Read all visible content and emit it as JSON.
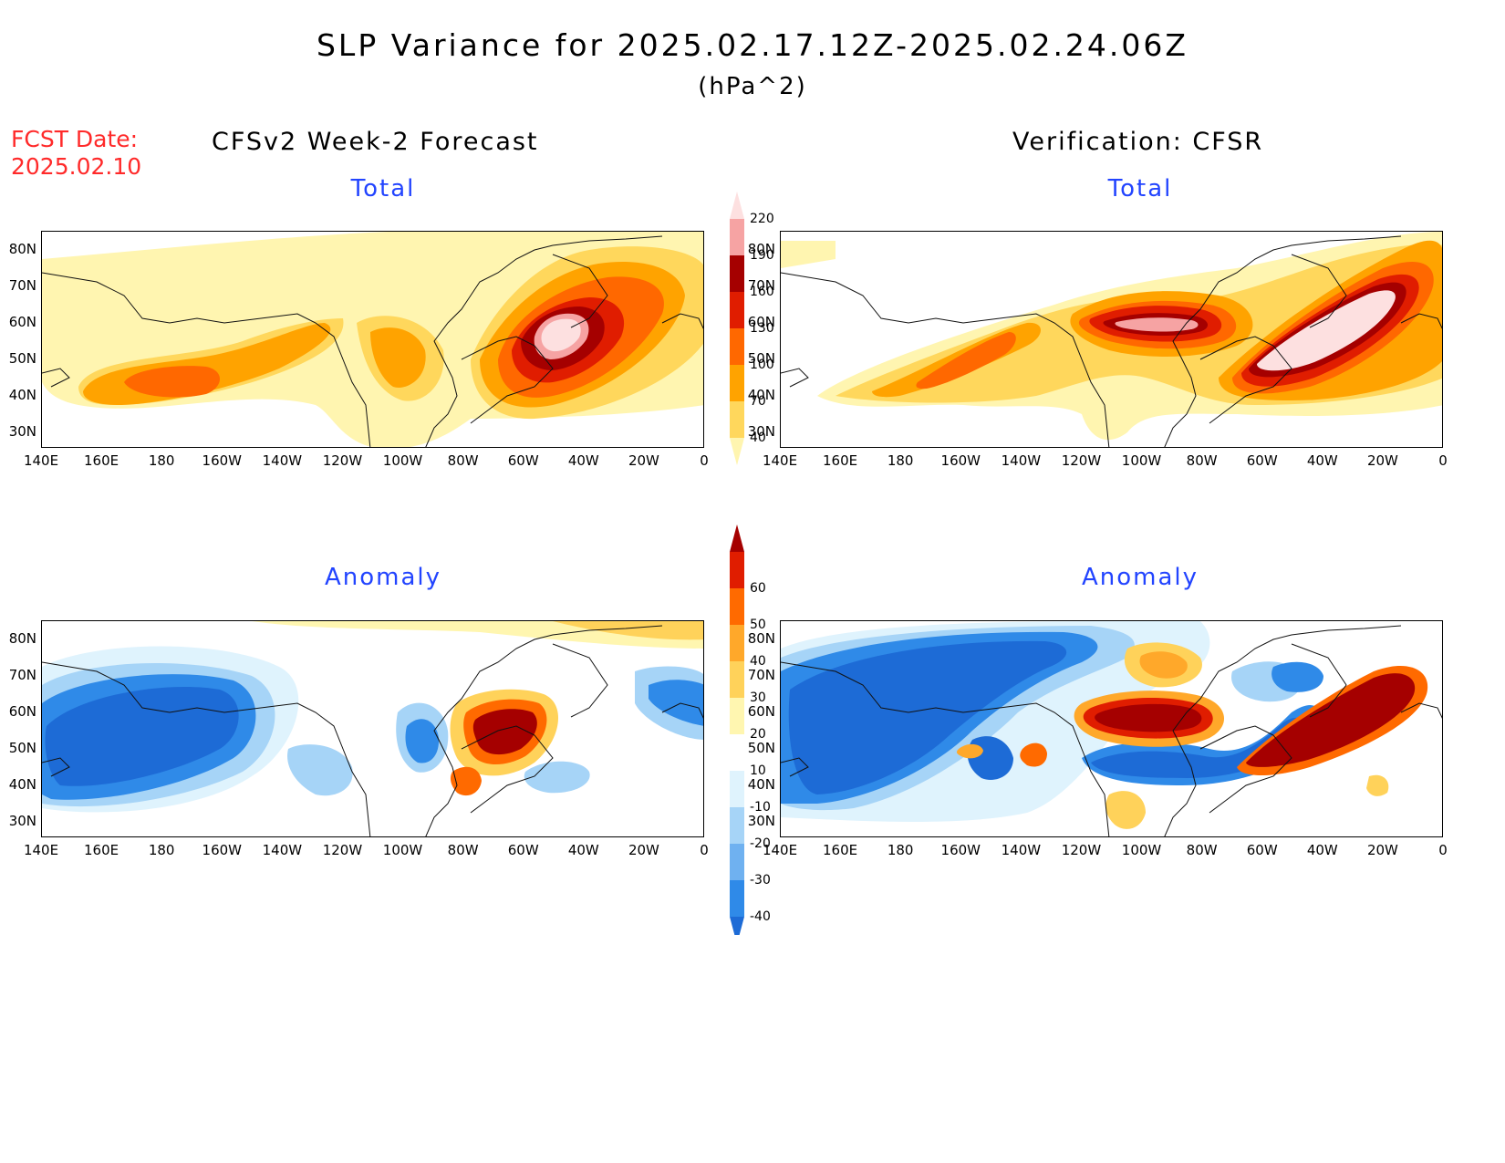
{
  "title": "SLP Variance for 2025.02.17.12Z-2025.02.24.06Z",
  "units": "(hPa^2)",
  "fcst_date_label": "FCST Date:",
  "fcst_date_value": "2025.02.10",
  "columns": {
    "left": "CFSv2 Week-2 Forecast",
    "right": "Verification: CFSR"
  },
  "panels": {
    "top_left_title": "Total",
    "top_right_title": "Total",
    "bottom_left_title": "Anomaly",
    "bottom_right_title": "Anomaly"
  },
  "lat_labels": [
    "80N",
    "70N",
    "60N",
    "50N",
    "40N",
    "30N"
  ],
  "lon_labels": [
    "140E",
    "160E",
    "180",
    "160W",
    "140W",
    "120W",
    "100W",
    "80W",
    "60W",
    "40W",
    "20W",
    "0"
  ],
  "colorbar_total": {
    "levels": [
      "40",
      "70",
      "100",
      "130",
      "160",
      "190",
      "220"
    ],
    "colors": [
      "#fff5b0",
      "#ffd75c",
      "#ffa300",
      "#ff6800",
      "#e01d00",
      "#a50000",
      "#f6a3a3",
      "#fde0e0"
    ]
  },
  "colorbar_anomaly": {
    "levels": [
      "-40",
      "-30",
      "-20",
      "-10",
      "10",
      "20",
      "30",
      "40",
      "50",
      "60"
    ],
    "colors": [
      "#1d6bd6",
      "#2f8ae8",
      "#6fb1f0",
      "#a6d4f7",
      "#dff3fd",
      "#ffffff",
      "#fff6b0",
      "#ffd25a",
      "#ffa82a",
      "#ff6a00",
      "#e01d00",
      "#a50000"
    ]
  },
  "colors": {
    "title_blue": "#2244ff",
    "fcst_red": "#ff2a2a"
  }
}
